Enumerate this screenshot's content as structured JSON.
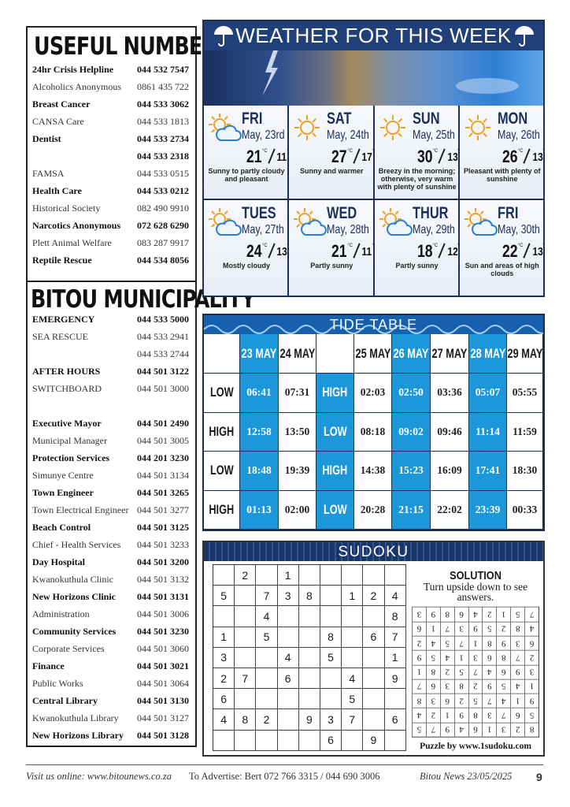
{
  "useful_numbers": {
    "title": "USEFUL NUMBERS",
    "rows": [
      {
        "name": "24hr Crisis Helpline",
        "number": "044 532 7547",
        "bold": true
      },
      {
        "name": "Alcoholics Anonymous",
        "number": "0861 435 722",
        "bold": false
      },
      {
        "name": "Breast Cancer",
        "number": "044 533 3062",
        "bold": true
      },
      {
        "name": "CANSA Care",
        "number": "044 533 1813",
        "bold": false
      },
      {
        "name": "Dentist",
        "number": "044 533 2734",
        "bold": true
      },
      {
        "name": null,
        "number": "044 533 2318",
        "bold": true
      },
      {
        "name": "FAMSA",
        "number": "044 533 0515",
        "bold": false
      },
      {
        "name": "Health Care",
        "number": "044 533 0212",
        "bold": true
      },
      {
        "name": "Historical Society",
        "number": "082 490 9910",
        "bold": false
      },
      {
        "name": "Narcotics Anonymous",
        "number": "072 628 6290",
        "bold": true
      },
      {
        "name": "Plett Animal Welfare",
        "number": "083 287 9917",
        "bold": false
      },
      {
        "name": "Reptile Rescue",
        "number": "044 534 8056",
        "bold": true
      }
    ]
  },
  "bitou_municipality": {
    "title": "BITOU MUNICIPALITY",
    "groups": [
      [
        {
          "name": "EMERGENCY",
          "number": "044 533 5000",
          "bold": true
        },
        {
          "name": "SEA RESCUE",
          "number": "044 533 2941",
          "bold": false
        },
        {
          "name": null,
          "number": "044 533 2744",
          "bold": false
        },
        {
          "name": "AFTER HOURS",
          "number": "044 501 3122",
          "bold": true
        },
        {
          "name": "SWITCHBOARD",
          "number": "044 501 3000",
          "bold": false
        }
      ],
      [
        {
          "name": "Executive Mayor",
          "number": "044 501 2490",
          "bold": true
        },
        {
          "name": "Municipal Manager",
          "number": "044 501 3005",
          "bold": false
        },
        {
          "name": "Protection Services",
          "number": "044 201 3230",
          "bold": true
        },
        {
          "name": "Simunye Centre",
          "number": "044 501 3134",
          "bold": false
        },
        {
          "name": "Town Engineer",
          "number": "044 501 3265",
          "bold": true
        },
        {
          "name": "Town Electrical Engineer",
          "number": "044 501 3277",
          "bold": false
        },
        {
          "name": "Beach Control",
          "number": "044 501 3125",
          "bold": true
        },
        {
          "name": "Chief - Health Services",
          "number": "044 501 3233",
          "bold": false
        },
        {
          "name": "Day Hospital",
          "number": "044 501 3200",
          "bold": true
        },
        {
          "name": "Kwanokuthula Clinic",
          "number": "044 501 3132",
          "bold": false
        },
        {
          "name": "New Horizons Clinic",
          "number": "044 501 3131",
          "bold": true
        },
        {
          "name": "Administration",
          "number": "044 501 3006",
          "bold": false
        },
        {
          "name": "Community Services",
          "number": "044 501 3230",
          "bold": true
        },
        {
          "name": "Corporate Services",
          "number": "044 501 3060",
          "bold": false
        },
        {
          "name": "Finance",
          "number": "044 501 3021",
          "bold": true
        },
        {
          "name": "Public Works",
          "number": "044 501 3064",
          "bold": false
        },
        {
          "name": "Central Library",
          "number": "044 501 3130",
          "bold": true
        },
        {
          "name": "Kwanokuthula Library",
          "number": "044 501 3127",
          "bold": false
        },
        {
          "name": "New Horizons Library",
          "number": "044 501 3128",
          "bold": true
        }
      ]
    ]
  },
  "weather": {
    "title": "WEATHER FOR THIS WEEK",
    "unit": "°C",
    "days": [
      {
        "day": "FRI",
        "date": "May, 23rd",
        "high": 21,
        "low": 11,
        "description": "Sunny to partly cloudy and pleasant",
        "icon": "partly-cloudy"
      },
      {
        "day": "SAT",
        "date": "May, 24th",
        "high": 27,
        "low": 17,
        "description": "Sunny and warmer",
        "icon": "sunny"
      },
      {
        "day": "SUN",
        "date": "May, 25th",
        "high": 30,
        "low": 13,
        "description": "Breezy in the morning; otherwise, very warm with plenty of sunshine",
        "icon": "sunny"
      },
      {
        "day": "MON",
        "date": "May, 26th",
        "high": 26,
        "low": 13,
        "description": "Pleasant with plenty of sunshine",
        "icon": "sunny"
      },
      {
        "day": "TUES",
        "date": "May, 27th",
        "high": 24,
        "low": 13,
        "description": "Mostly cloudy",
        "icon": "partly-cloudy"
      },
      {
        "day": "WED",
        "date": "May, 28th",
        "high": 21,
        "low": 11,
        "description": "Partly sunny",
        "icon": "partly-cloudy"
      },
      {
        "day": "THUR",
        "date": "May, 29th",
        "high": 18,
        "low": 12,
        "description": "Partly sunny",
        "icon": "partly-cloudy"
      },
      {
        "day": "FRI",
        "date": "May, 30th",
        "high": 22,
        "low": 13,
        "description": "Sun and areas of high clouds",
        "icon": "partly-cloudy"
      }
    ]
  },
  "tide_table": {
    "title": "TIDE TABLE",
    "dates": [
      {
        "label": "23 MAY",
        "highlight": true
      },
      {
        "label": "24 MAY",
        "highlight": false
      },
      {
        "label": "25 MAY",
        "highlight": false
      },
      {
        "label": "26 MAY",
        "highlight": true
      },
      {
        "label": "27 MAY",
        "highlight": false
      },
      {
        "label": "28 MAY",
        "highlight": true
      },
      {
        "label": "29 MAY",
        "highlight": false
      }
    ],
    "rows": [
      {
        "type_before": "LOW",
        "type_after": "HIGH",
        "times": [
          "06:41",
          "07:31",
          "02:03",
          "02:50",
          "03:36",
          "05:07",
          "05:55"
        ]
      },
      {
        "type_before": "HIGH",
        "type_after": "LOW",
        "times": [
          "12:58",
          "13:50",
          "08:18",
          "09:02",
          "09:46",
          "11:14",
          "11:59"
        ]
      },
      {
        "type_before": "LOW",
        "type_after": "HIGH",
        "times": [
          "18:48",
          "19:39",
          "14:38",
          "15:23",
          "16:09",
          "17:41",
          "18:30"
        ]
      },
      {
        "type_before": "HIGH",
        "type_after": "LOW",
        "times": [
          "01:13",
          "02:00",
          "20:28",
          "21:15",
          "22:02",
          "23:39",
          "00:33"
        ]
      }
    ]
  },
  "sudoku": {
    "title": "SUDOKU",
    "puzzle": [
      [
        null,
        2,
        null,
        1,
        null,
        null,
        null,
        null,
        null
      ],
      [
        5,
        null,
        7,
        3,
        8,
        null,
        1,
        2,
        4
      ],
      [
        null,
        null,
        4,
        null,
        null,
        null,
        null,
        null,
        8
      ],
      [
        1,
        null,
        5,
        null,
        null,
        8,
        null,
        6,
        7
      ],
      [
        3,
        null,
        null,
        4,
        null,
        5,
        null,
        null,
        1
      ],
      [
        2,
        7,
        null,
        6,
        null,
        null,
        4,
        null,
        9
      ],
      [
        6,
        null,
        null,
        null,
        null,
        null,
        5,
        null,
        null
      ],
      [
        4,
        8,
        2,
        null,
        9,
        3,
        7,
        null,
        6
      ],
      [
        null,
        null,
        null,
        null,
        null,
        6,
        null,
        9,
        null
      ]
    ],
    "solution_title": "SOLUTION",
    "solution_note": "Turn upside down to see answers.",
    "solution": [
      [
        8,
        2,
        3,
        1,
        6,
        4,
        9,
        7,
        5
      ],
      [
        5,
        6,
        7,
        3,
        8,
        9,
        1,
        2,
        4
      ],
      [
        9,
        1,
        4,
        7,
        5,
        2,
        6,
        3,
        8
      ],
      [
        1,
        4,
        5,
        9,
        2,
        8,
        3,
        6,
        7
      ],
      [
        3,
        9,
        6,
        4,
        7,
        5,
        2,
        8,
        1
      ],
      [
        2,
        7,
        8,
        6,
        3,
        1,
        4,
        5,
        9
      ],
      [
        6,
        3,
        9,
        8,
        1,
        7,
        5,
        4,
        2
      ],
      [
        4,
        8,
        2,
        5,
        9,
        3,
        7,
        1,
        6
      ],
      [
        7,
        5,
        1,
        2,
        4,
        6,
        8,
        9,
        3
      ]
    ],
    "credit": "Puzzle by www.1sudoku.com"
  },
  "footer": {
    "website": "Visit us online: www.bitounews.co.za",
    "advertise": "To Advertise: Bert 072 766 3315 / 044 690 3006",
    "issue": "Bitou News 23/05/2025",
    "page": 9
  }
}
